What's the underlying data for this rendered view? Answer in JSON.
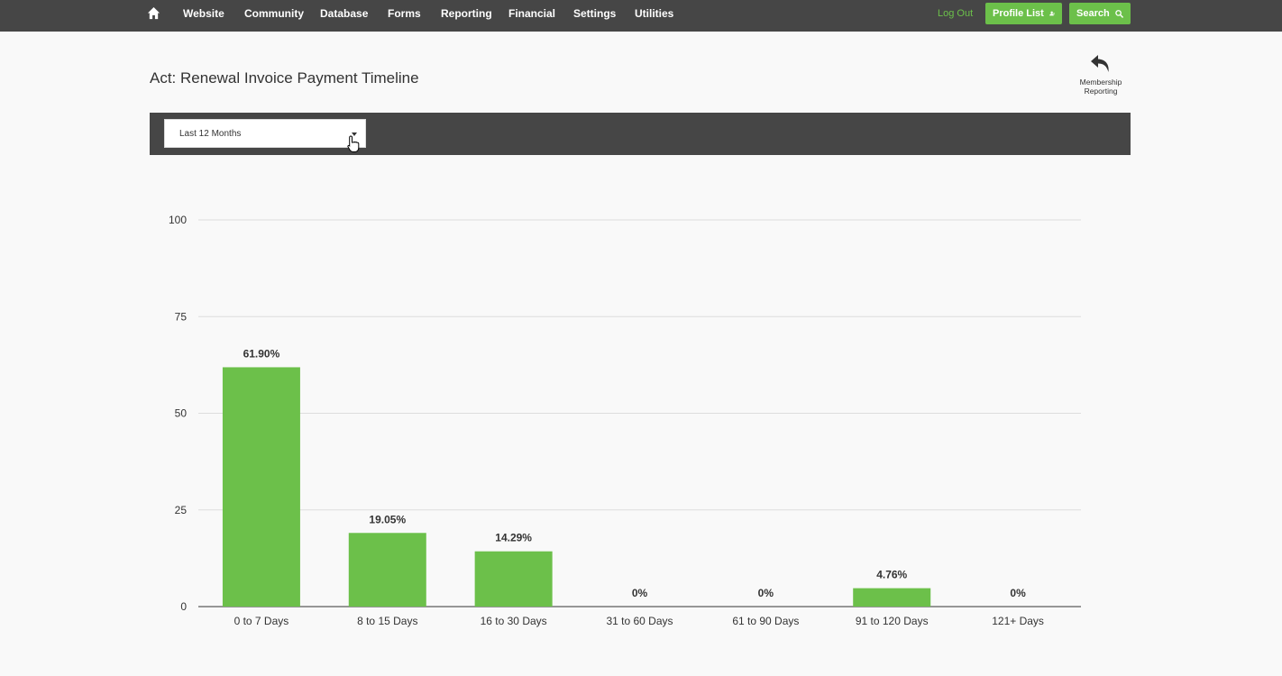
{
  "nav": {
    "items": [
      {
        "label": "Website"
      },
      {
        "label": "Community"
      },
      {
        "label": "Database"
      },
      {
        "label": "Forms"
      },
      {
        "label": "Reporting"
      },
      {
        "label": "Financial"
      },
      {
        "label": "Settings"
      },
      {
        "label": "Utilities"
      }
    ],
    "logout": "Log Out",
    "profile_list": "Profile List",
    "search": "Search",
    "icons": [
      "home-icon",
      "user-list-icon",
      "search-icon"
    ]
  },
  "page": {
    "title": "Act: Renewal Invoice Payment Timeline",
    "back_label": "Membership Reporting",
    "back_icon": "reply-arrow-icon"
  },
  "filter": {
    "selected": "Last 12 Months"
  },
  "chart_data": {
    "type": "bar",
    "categories": [
      "0 to 7 Days",
      "8 to 15 Days",
      "16 to 30 Days",
      "31 to 60 Days",
      "61 to 90 Days",
      "91 to 120 Days",
      "121+ Days"
    ],
    "values": [
      61.9,
      19.05,
      14.29,
      0,
      0,
      4.76,
      0
    ],
    "data_labels": [
      "61.90%",
      "19.05%",
      "14.29%",
      "0%",
      "0%",
      "4.76%",
      "0%"
    ],
    "yticks": [
      "0",
      "25",
      "50",
      "75",
      "100"
    ],
    "ylim": [
      0,
      100
    ],
    "grid": true,
    "bar_color": "#6cc04a"
  }
}
